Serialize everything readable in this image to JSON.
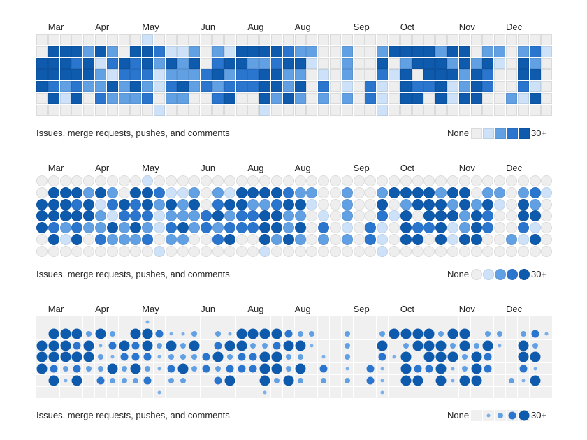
{
  "months": [
    {
      "label": "Mar",
      "col": 1
    },
    {
      "label": "Apr",
      "col": 5
    },
    {
      "label": "May",
      "col": 9
    },
    {
      "label": "Jun",
      "col": 14
    },
    {
      "label": "Aug",
      "col": 18
    },
    {
      "label": "Aug",
      "col": 22
    },
    {
      "label": "Sep",
      "col": 27
    },
    {
      "label": "Oct",
      "col": 31
    },
    {
      "label": "Nov",
      "col": 36
    },
    {
      "label": "Dec",
      "col": 40
    }
  ],
  "caption": "Issues, merge requests, pushes, and comments",
  "legend": {
    "none_label": "None",
    "max_label": "30+"
  },
  "colors": [
    "#eeeeee",
    "#cde2f8",
    "#62a0e4",
    "#2a76cf",
    "#0e5aad"
  ],
  "variants": [
    {
      "name": "squares",
      "style": "square"
    },
    {
      "name": "circles",
      "style": "circle"
    },
    {
      "name": "sized-dots",
      "style": "dot"
    }
  ],
  "activity_levels": [
    [
      0,
      0,
      0,
      0,
      0,
      0,
      0,
      0,
      0,
      1,
      0,
      0,
      0,
      0,
      0,
      0,
      0,
      0,
      0,
      0,
      0,
      0,
      0,
      0,
      0,
      0,
      0,
      0,
      0,
      0,
      0,
      0,
      0,
      0,
      0,
      0,
      0,
      0,
      0,
      0,
      0,
      0,
      0,
      0
    ],
    [
      0,
      4,
      4,
      4,
      2,
      4,
      2,
      0,
      4,
      4,
      3,
      1,
      1,
      2,
      0,
      2,
      1,
      4,
      4,
      4,
      4,
      3,
      2,
      2,
      0,
      0,
      2,
      0,
      0,
      2,
      4,
      4,
      4,
      4,
      2,
      4,
      4,
      0,
      2,
      2,
      0,
      2,
      3,
      1
    ],
    [
      4,
      4,
      4,
      3,
      4,
      1,
      3,
      4,
      3,
      4,
      2,
      4,
      2,
      4,
      0,
      3,
      4,
      4,
      2,
      2,
      3,
      4,
      4,
      1,
      0,
      0,
      2,
      0,
      0,
      4,
      0,
      2,
      4,
      4,
      4,
      2,
      4,
      2,
      4,
      1,
      0,
      4,
      2,
      0
    ],
    [
      4,
      4,
      4,
      4,
      4,
      2,
      1,
      3,
      3,
      3,
      1,
      2,
      2,
      2,
      3,
      4,
      2,
      3,
      3,
      4,
      4,
      2,
      2,
      0,
      1,
      0,
      2,
      0,
      0,
      3,
      1,
      4,
      0,
      4,
      4,
      4,
      2,
      4,
      3,
      0,
      0,
      4,
      4,
      0
    ],
    [
      4,
      3,
      2,
      3,
      2,
      2,
      4,
      2,
      4,
      2,
      1,
      3,
      4,
      2,
      3,
      2,
      3,
      3,
      3,
      4,
      4,
      2,
      4,
      0,
      3,
      0,
      1,
      0,
      3,
      1,
      0,
      4,
      3,
      3,
      4,
      1,
      2,
      4,
      3,
      0,
      0,
      3,
      1,
      0
    ],
    [
      0,
      4,
      1,
      4,
      0,
      3,
      2,
      2,
      2,
      3,
      0,
      2,
      2,
      0,
      0,
      3,
      4,
      0,
      0,
      4,
      2,
      4,
      2,
      0,
      2,
      0,
      2,
      0,
      3,
      1,
      0,
      4,
      4,
      0,
      4,
      1,
      4,
      4,
      0,
      0,
      2,
      1,
      4,
      0
    ],
    [
      0,
      0,
      0,
      0,
      0,
      0,
      0,
      0,
      0,
      0,
      1,
      0,
      0,
      0,
      0,
      0,
      0,
      0,
      0,
      1,
      0,
      0,
      0,
      0,
      0,
      0,
      0,
      0,
      0,
      1,
      0,
      0,
      0,
      0,
      0,
      0,
      0,
      0,
      0,
      0,
      0,
      0,
      0,
      0
    ]
  ]
}
